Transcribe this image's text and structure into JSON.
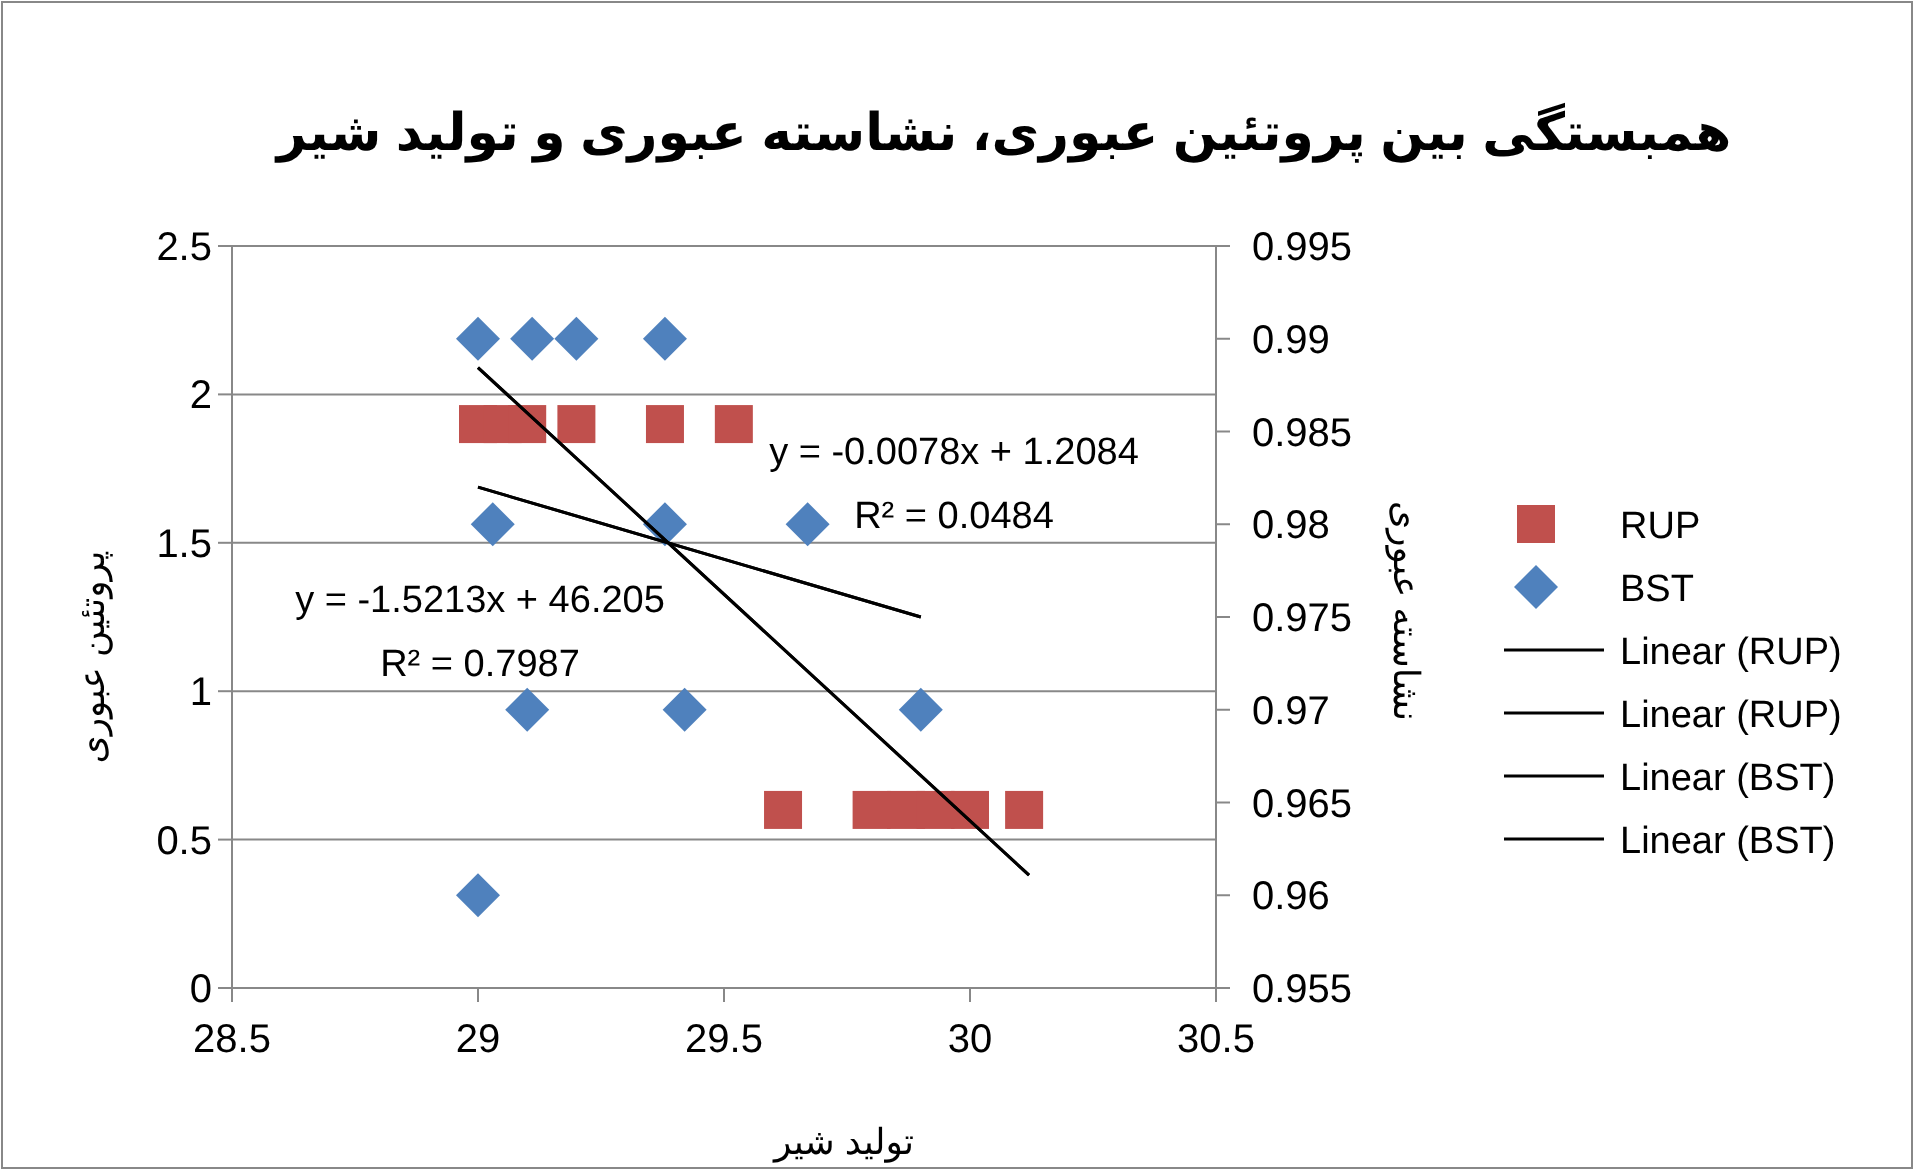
{
  "chart_data": {
    "type": "scatter",
    "title": "همبستگی بین پروتئین عبوری، نشاسته عبوری و تولید شیر",
    "xlabel": "تولید شیر",
    "ylabel": "پروتئین عبوری",
    "y2label": "نشاسته عبوری",
    "xlim": [
      28.5,
      30.5
    ],
    "xticks": [
      28.5,
      29,
      29.5,
      30,
      30.5
    ],
    "ylim": [
      0,
      2.5
    ],
    "yticks": [
      0,
      0.5,
      1,
      1.5,
      2,
      2.5
    ],
    "y2lim": [
      0.955,
      0.995
    ],
    "y2ticks": [
      0.955,
      0.96,
      0.965,
      0.97,
      0.975,
      0.98,
      0.985,
      0.99,
      0.995
    ],
    "grid": "y",
    "legend": "right",
    "series": [
      {
        "name": "RUP",
        "marker": "square",
        "color": "#c0504d",
        "x": [
          29.0,
          29.05,
          29.1,
          29.2,
          29.38,
          29.52,
          29.62,
          29.8,
          29.87,
          29.93,
          30.0,
          30.11
        ],
        "values": [
          1.9,
          1.9,
          1.9,
          1.9,
          1.9,
          1.9,
          0.6,
          0.6,
          0.6,
          0.6,
          0.6,
          0.6
        ]
      },
      {
        "name": "BST",
        "marker": "diamond",
        "color": "#4f81bd",
        "axis": "y2",
        "x": [
          29.0,
          29.11,
          29.2,
          29.38,
          29.03,
          29.38,
          29.67,
          29.1,
          29.42,
          29.9,
          29.0
        ],
        "values": [
          0.99,
          0.99,
          0.99,
          0.99,
          0.98,
          0.98,
          0.98,
          0.97,
          0.97,
          0.97,
          0.96
        ]
      },
      {
        "name": "Linear (RUP)",
        "type": "line",
        "color": "#000000",
        "line_style": "solid",
        "x": [
          29.0,
          30.12
        ],
        "values": [
          2.09,
          0.38
        ]
      },
      {
        "name": "Linear (RUP)",
        "type": "line",
        "color": "#000000",
        "line_style": "solid",
        "x": [
          29.0,
          30.12
        ],
        "values": [
          2.09,
          0.38
        ]
      },
      {
        "name": "Linear (BST)",
        "type": "line",
        "color": "#000000",
        "line_style": "solid",
        "axis": "y2",
        "x": [
          29.0,
          29.9
        ],
        "values": [
          0.982,
          0.975
        ]
      },
      {
        "name": "Linear (BST)",
        "type": "line",
        "color": "#000000",
        "line_style": "solid",
        "axis": "y2",
        "x": [
          29.0,
          29.9
        ],
        "values": [
          0.982,
          0.975
        ]
      }
    ],
    "annotations": [
      "y = -0.0078x + 1.2084",
      "R² = 0.0484",
      "y = -1.5213x + 46.205",
      "R² = 0.7987"
    ]
  }
}
